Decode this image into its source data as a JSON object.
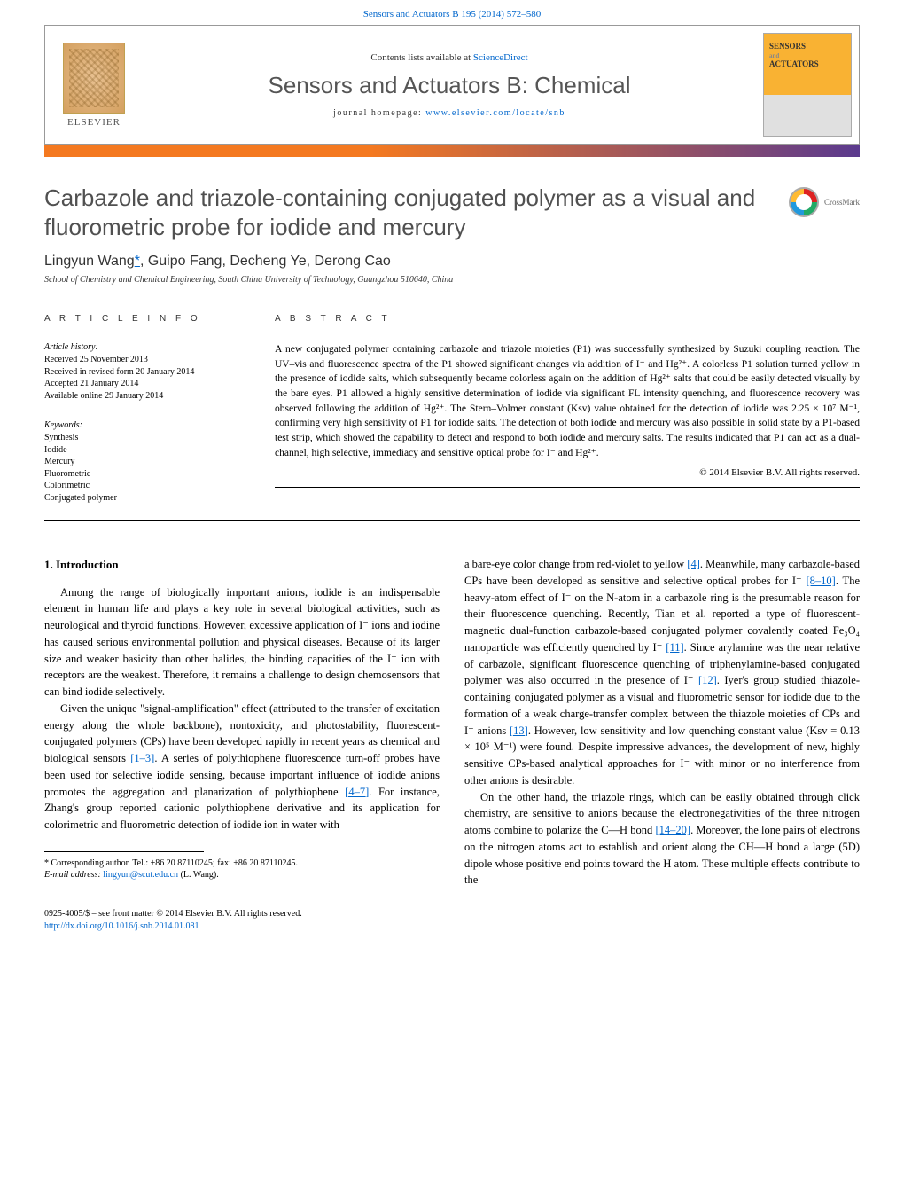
{
  "topbar": {
    "citation_link": "Sensors and Actuators B 195 (2014) 572–580"
  },
  "header": {
    "publisher": "ELSEVIER",
    "contents_prefix": "Contents lists available at ",
    "contents_link": "ScienceDirect",
    "journal_name": "Sensors and Actuators B: Chemical",
    "homepage_prefix": "journal homepage: ",
    "homepage_link": "www.elsevier.com/locate/snb",
    "cover_title_1": "SENSORS",
    "cover_and": "and",
    "cover_title_2": "ACTUATORS"
  },
  "crossmark": {
    "label": "CrossMark"
  },
  "title": "Carbazole and triazole-containing conjugated polymer as a visual and fluorometric probe for iodide and mercury",
  "authors": {
    "a1": "Lingyun Wang",
    "corr": "*",
    "sep1": ", ",
    "a2": "Guipo Fang",
    "sep2": ", ",
    "a3": "Decheng Ye",
    "sep3": ", ",
    "a4": "Derong Cao"
  },
  "affiliation": "School of Chemistry and Chemical Engineering, South China University of Technology, Guangzhou 510640, China",
  "article_info": {
    "heading": "A R T I C L E   I N F O",
    "history_label": "Article history:",
    "received": "Received 25 November 2013",
    "revised": "Received in revised form 20 January 2014",
    "accepted": "Accepted 21 January 2014",
    "online": "Available online 29 January 2014",
    "keywords_label": "Keywords:",
    "k1": "Synthesis",
    "k2": "Iodide",
    "k3": "Mercury",
    "k4": "Fluorometric",
    "k5": "Colorimetric",
    "k6": "Conjugated polymer"
  },
  "abstract": {
    "heading": "A B S T R A C T",
    "text": "A new conjugated polymer containing carbazole and triazole moieties (P1) was successfully synthesized by Suzuki coupling reaction. The UV–vis and fluorescence spectra of the P1 showed significant changes via addition of I⁻ and Hg²⁺. A colorless P1 solution turned yellow in the presence of iodide salts, which subsequently became colorless again on the addition of Hg²⁺ salts that could be easily detected visually by the bare eyes. P1 allowed a highly sensitive determination of iodide via significant FL intensity quenching, and fluorescence recovery was observed following the addition of Hg²⁺. The Stern–Volmer constant (Ksv) value obtained for the detection of iodide was 2.25 × 10⁷ M⁻¹, confirming very high sensitivity of P1 for iodide salts. The detection of both iodide and mercury was also possible in solid state by a P1-based test strip, which showed the capability to detect and respond to both iodide and mercury salts. The results indicated that P1 can act as a dual-channel, high selective, immediacy and sensitive optical probe for I⁻ and Hg²⁺.",
    "copyright": "© 2014 Elsevier B.V. All rights reserved."
  },
  "body": {
    "section_no": "1.",
    "section_title": "Introduction",
    "col1_p1": "Among the range of biologically important anions, iodide is an indispensable element in human life and plays a key role in several biological activities, such as neurological and thyroid functions. However, excessive application of I⁻ ions and iodine has caused serious environmental pollution and physical diseases. Because of its larger size and weaker basicity than other halides, the binding capacities of the I⁻ ion with receptors are the weakest. Therefore, it remains a challenge to design chemosensors that can bind iodide selectively.",
    "col1_p2_a": "Given the unique \"signal-amplification\" effect (attributed to the transfer of excitation energy along the whole backbone), nontoxicity, and photostability, fluorescent-conjugated polymers (CPs) have been developed rapidly in recent years as chemical and biological sensors ",
    "ref_1_3": "[1–3]",
    "col1_p2_b": ". A series of polythiophene fluorescence turn-off probes have been used for selective iodide sensing, because important influence of iodide anions promotes the aggregation and planarization of polythiophene ",
    "ref_4_7": "[4–7]",
    "col1_p2_c": ". For instance, Zhang's group reported cationic polythiophene derivative and its application for colorimetric and fluorometric detection of iodide ion in water with",
    "col2_p1_a": "a bare-eye color change from red-violet to yellow ",
    "ref_4": "[4]",
    "col2_p1_b": ". Meanwhile, many carbazole-based CPs have been developed as sensitive and selective optical probes for I⁻ ",
    "ref_8_10": "[8–10]",
    "col2_p1_c": ". The heavy-atom effect of I⁻ on the N-atom in a carbazole ring is the presumable reason for their fluorescence quenching. Recently, Tian et al. reported a type of fluorescent-magnetic dual-function carbazole-based conjugated polymer covalently coated Fe₃O₄ nanoparticle was efficiently quenched by I⁻ ",
    "ref_11": "[11]",
    "col2_p1_d": ". Since arylamine was the near relative of carbazole, significant fluorescence quenching of triphenylamine-based conjugated polymer was also occurred in the presence of I⁻ ",
    "ref_12": "[12]",
    "col2_p1_e": ". Iyer's group studied thiazole-containing conjugated polymer as a visual and fluorometric sensor for iodide due to the formation of a weak charge-transfer complex between the thiazole moieties of CPs and I⁻ anions ",
    "ref_13": "[13]",
    "col2_p1_f": ". However, low sensitivity and low quenching constant value (Ksv = 0.13 × 10⁵ M⁻¹) were found. Despite impressive advances, the development of new, highly sensitive CPs-based analytical approaches for I⁻ with minor or no interference from other anions is desirable.",
    "col2_p2_a": "On the other hand, the triazole rings, which can be easily obtained through click chemistry, are sensitive to anions because the electronegativities of the three nitrogen atoms combine to polarize the C—H bond ",
    "ref_14_20": "[14–20]",
    "col2_p2_b": ". Moreover, the lone pairs of electrons on the nitrogen atoms act to establish and orient along the CH—H bond a large (5D) dipole whose positive end points toward the H atom. These multiple effects contribute to the"
  },
  "footnote": {
    "corr_label": "* Corresponding author. Tel.: +86 20 87110245; fax: +86 20 87110245.",
    "email_label": "E-mail address: ",
    "email": "lingyun@scut.edu.cn",
    "email_suffix": " (L. Wang)."
  },
  "bottom": {
    "issn": "0925-4005/$ – see front matter © 2014 Elsevier B.V. All rights reserved.",
    "doi": "http://dx.doi.org/10.1016/j.snb.2014.01.081"
  },
  "colors": {
    "link": "#0066cc",
    "orange": "#f47920",
    "purple": "#5b3a8e",
    "cover_orange": "#f9b233"
  }
}
